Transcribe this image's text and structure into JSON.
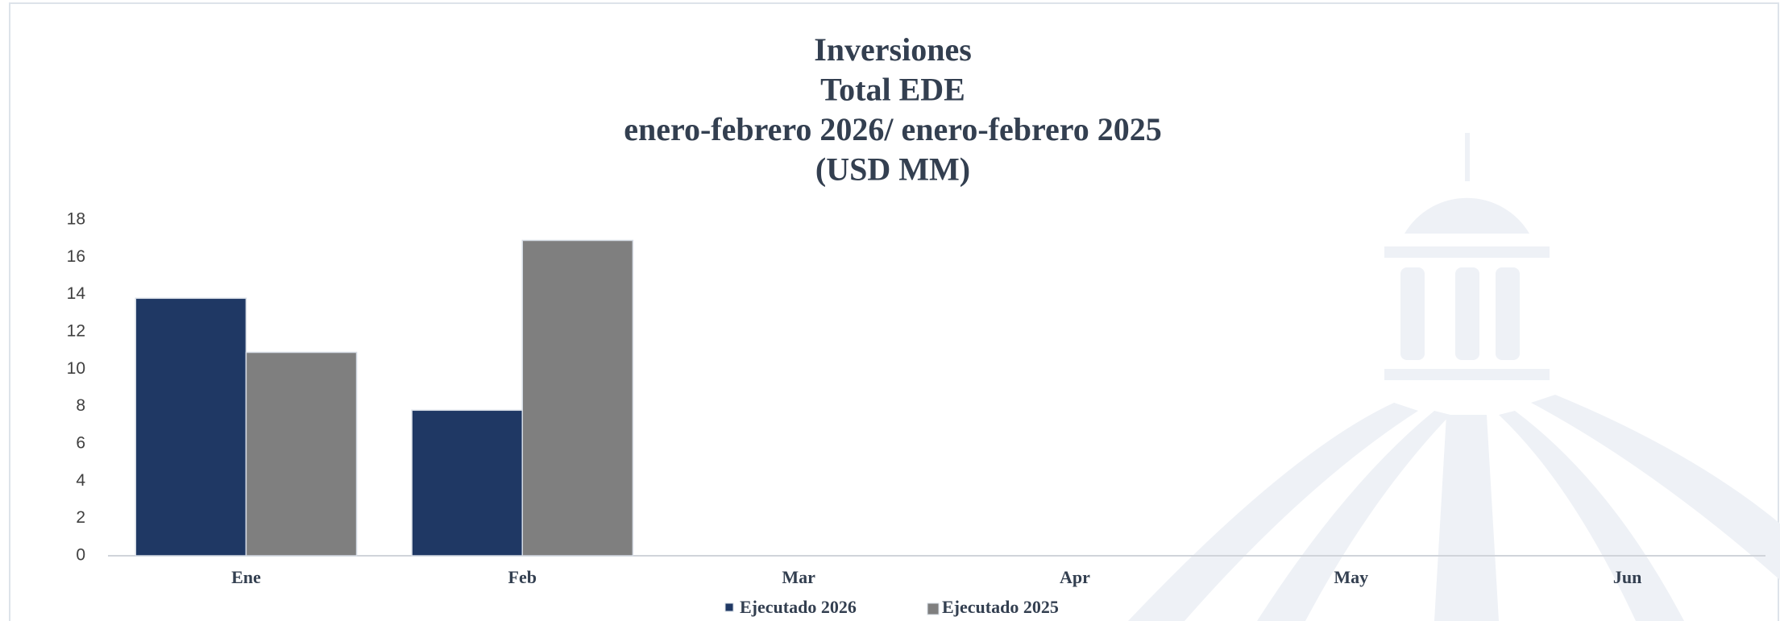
{
  "chart_data": {
    "type": "bar",
    "title": [
      "Inversiones",
      "Total EDE",
      "enero-febrero 2026/ enero-febrero 2025",
      "(USD MM)"
    ],
    "categories": [
      "Ene",
      "Feb",
      "Mar",
      "Apr",
      "May",
      "Jun"
    ],
    "series": [
      {
        "name": "Ejecutado 2026",
        "color": "#1f3864",
        "values": [
          13.8,
          7.8,
          null,
          null,
          null,
          null
        ]
      },
      {
        "name": "Ejecutado 2025",
        "color": "#7f7f7f",
        "values": [
          10.9,
          16.9,
          null,
          null,
          null,
          null
        ]
      }
    ],
    "ylim": [
      0,
      18
    ],
    "yticks": [
      0,
      2,
      4,
      6,
      8,
      10,
      12,
      14,
      16,
      18
    ],
    "grid": false,
    "legend": "bottom"
  }
}
